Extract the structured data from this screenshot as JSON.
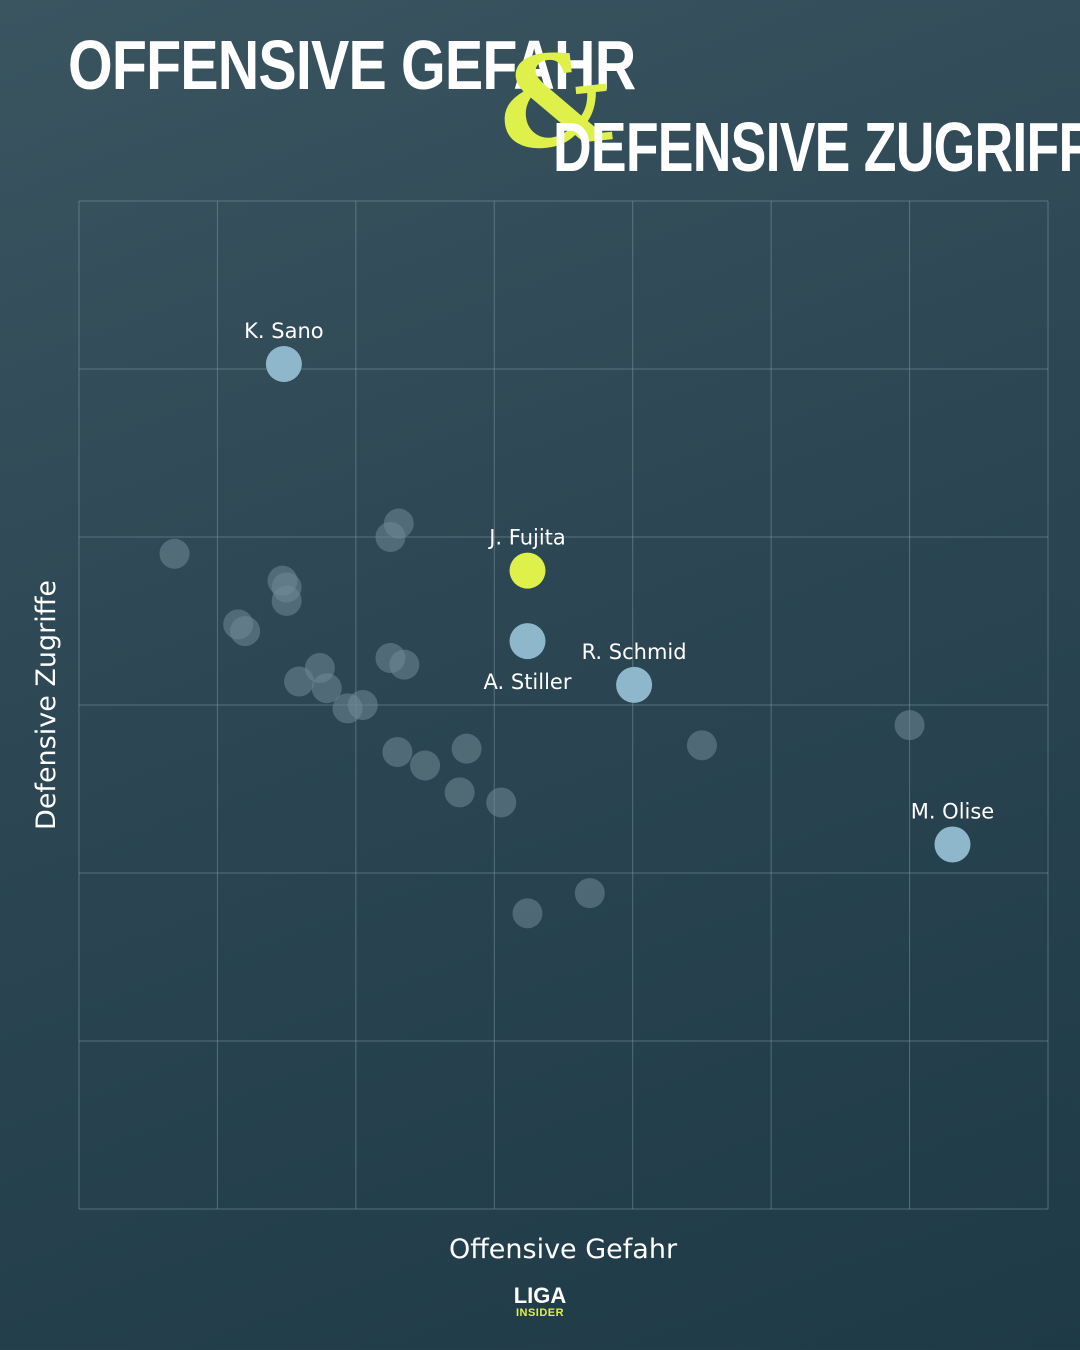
{
  "title": {
    "line1": "OFFENSIVE GEFAHR",
    "ampersand": "&",
    "line2": "DEFENSIVE ZUGRIFFE"
  },
  "colors": {
    "background": "#2c4653",
    "highlight": "#dff04a",
    "named_point": "#8fb7cc",
    "other_point": "#6f8b96",
    "grid": "#8ea7b1"
  },
  "logo": {
    "top": "LIGA",
    "bottom": "INSIDER"
  },
  "chart_data": {
    "type": "scatter",
    "xlabel": "Offensive Gefahr",
    "ylabel": "Defensive Zugriffe",
    "xlim": [
      0,
      7
    ],
    "ylim": [
      0,
      6
    ],
    "grid": true,
    "points": [
      {
        "label": "K. Sano",
        "x": 1.48,
        "y": 5.03,
        "kind": "named"
      },
      {
        "label": "J. Fujita",
        "x": 3.24,
        "y": 3.8,
        "kind": "highlight"
      },
      {
        "label": "A. Stiller",
        "x": 3.24,
        "y": 3.38,
        "kind": "named"
      },
      {
        "label": "R. Schmid",
        "x": 4.01,
        "y": 3.12,
        "kind": "named"
      },
      {
        "label": "M. Olise",
        "x": 6.31,
        "y": 2.17,
        "kind": "named"
      },
      {
        "label": "",
        "x": 0.69,
        "y": 3.9,
        "kind": "other"
      },
      {
        "label": "",
        "x": 1.15,
        "y": 3.48,
        "kind": "other"
      },
      {
        "label": "",
        "x": 1.2,
        "y": 3.44,
        "kind": "other"
      },
      {
        "label": "",
        "x": 1.47,
        "y": 3.74,
        "kind": "other"
      },
      {
        "label": "",
        "x": 1.5,
        "y": 3.7,
        "kind": "other"
      },
      {
        "label": "",
        "x": 1.5,
        "y": 3.62,
        "kind": "other"
      },
      {
        "label": "",
        "x": 1.59,
        "y": 3.14,
        "kind": "other"
      },
      {
        "label": "",
        "x": 1.74,
        "y": 3.22,
        "kind": "other"
      },
      {
        "label": "",
        "x": 1.79,
        "y": 3.1,
        "kind": "other"
      },
      {
        "label": "",
        "x": 1.94,
        "y": 2.98,
        "kind": "other"
      },
      {
        "label": "",
        "x": 2.05,
        "y": 3.0,
        "kind": "other"
      },
      {
        "label": "",
        "x": 2.25,
        "y": 4.0,
        "kind": "other"
      },
      {
        "label": "",
        "x": 2.31,
        "y": 4.08,
        "kind": "other"
      },
      {
        "label": "",
        "x": 2.25,
        "y": 3.28,
        "kind": "other"
      },
      {
        "label": "",
        "x": 2.35,
        "y": 3.24,
        "kind": "other"
      },
      {
        "label": "",
        "x": 2.3,
        "y": 2.72,
        "kind": "other"
      },
      {
        "label": "",
        "x": 2.5,
        "y": 2.64,
        "kind": "other"
      },
      {
        "label": "",
        "x": 2.75,
        "y": 2.48,
        "kind": "other"
      },
      {
        "label": "",
        "x": 2.8,
        "y": 2.74,
        "kind": "other"
      },
      {
        "label": "",
        "x": 3.05,
        "y": 2.42,
        "kind": "other"
      },
      {
        "label": "",
        "x": 3.24,
        "y": 1.76,
        "kind": "other"
      },
      {
        "label": "",
        "x": 3.69,
        "y": 1.88,
        "kind": "other"
      },
      {
        "label": "",
        "x": 4.5,
        "y": 2.76,
        "kind": "other"
      },
      {
        "label": "",
        "x": 6.0,
        "y": 2.88,
        "kind": "other"
      }
    ]
  }
}
